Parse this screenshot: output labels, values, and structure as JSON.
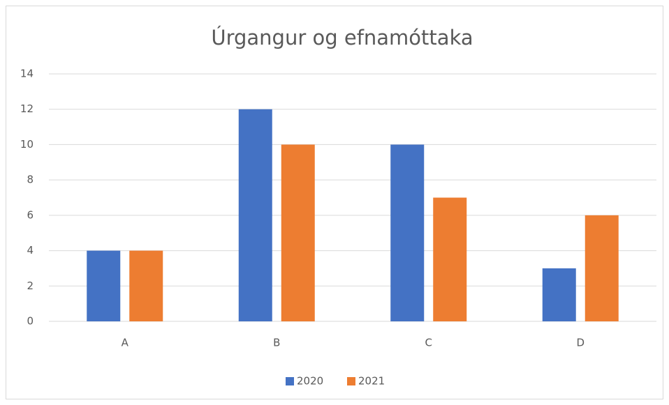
{
  "chart_data": {
    "type": "bar",
    "title": "Úrgangur og efnamóttaka",
    "categories": [
      "A",
      "B",
      "C",
      "D"
    ],
    "series": [
      {
        "name": "2020",
        "color": "#4472c4",
        "values": [
          4,
          12,
          10,
          3
        ]
      },
      {
        "name": "2021",
        "color": "#ed7d31",
        "values": [
          4,
          10,
          7,
          6
        ]
      }
    ],
    "ylim": [
      0,
      14
    ],
    "yticks": [
      0,
      2,
      4,
      6,
      8,
      10,
      12,
      14
    ],
    "grid": true,
    "legend": "bottom"
  }
}
